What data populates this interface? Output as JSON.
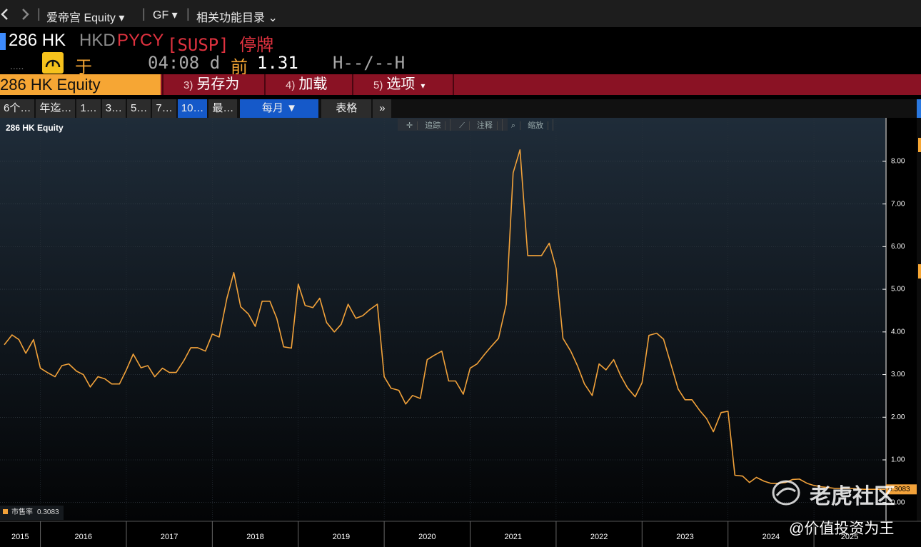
{
  "nav": {
    "security": "爱帝宫 Equity",
    "source": "GF",
    "related": "相关功能目录"
  },
  "header": {
    "ticker": "286 HK",
    "currency": "HKD",
    "code": "PYCY",
    "status": "[SUSP] 停牌",
    "time_prefix": "于",
    "time": "04:08 d",
    "prev_label": "前",
    "prev_value": "1.31",
    "range": "H--/--H"
  },
  "actions": {
    "security": "286 HK Equity",
    "buttons": [
      {
        "key": "3)",
        "label": "另存为"
      },
      {
        "key": "4)",
        "label": "加载"
      },
      {
        "key": "5)",
        "label": "选项"
      }
    ]
  },
  "tabs": [
    "6个…",
    "年迄…",
    "1…",
    "3…",
    "5…",
    "7…",
    "10…",
    "最…"
  ],
  "frequency": "每月 ▼",
  "table": "表格",
  "more": "»",
  "chart_tools": [
    "追踪",
    "注释",
    "缩放"
  ],
  "chart_data": {
    "type": "line",
    "title": "286 HK Equity",
    "x": [
      2015.58,
      2015.67,
      2015.75,
      2015.83,
      2015.92,
      2016.0,
      2016.08,
      2016.17,
      2016.25,
      2016.33,
      2016.42,
      2016.5,
      2016.58,
      2016.67,
      2016.75,
      2016.83,
      2016.92,
      2017.0,
      2017.08,
      2017.17,
      2017.25,
      2017.33,
      2017.42,
      2017.5,
      2017.58,
      2017.67,
      2017.75,
      2017.83,
      2017.92,
      2018.0,
      2018.08,
      2018.17,
      2018.25,
      2018.33,
      2018.42,
      2018.5,
      2018.58,
      2018.67,
      2018.75,
      2018.83,
      2018.92,
      2019.0,
      2019.08,
      2019.17,
      2019.25,
      2019.33,
      2019.42,
      2019.5,
      2019.58,
      2019.67,
      2019.75,
      2019.83,
      2019.92,
      2020.0,
      2020.08,
      2020.17,
      2020.25,
      2020.33,
      2020.42,
      2020.5,
      2020.58,
      2020.67,
      2020.75,
      2020.83,
      2020.92,
      2021.0,
      2021.08,
      2021.17,
      2021.25,
      2021.33,
      2021.42,
      2021.5,
      2021.58,
      2021.67,
      2021.75,
      2021.83,
      2021.92,
      2022.0,
      2022.08,
      2022.17,
      2022.25,
      2022.33,
      2022.42,
      2022.5,
      2022.58,
      2022.67,
      2022.75,
      2022.83,
      2022.92,
      2023.0,
      2023.08,
      2023.17,
      2023.25,
      2023.33,
      2023.42,
      2023.5,
      2023.58,
      2023.67,
      2023.75,
      2023.83,
      2023.92,
      2024.0,
      2024.08,
      2024.17,
      2024.25,
      2024.33,
      2024.42,
      2024.5,
      2024.58,
      2024.67,
      2024.75,
      2024.83,
      2024.92,
      2025.0,
      2025.08,
      2025.17,
      2025.25,
      2025.33,
      2025.42,
      2025.5,
      2025.58,
      2025.67,
      2025.75,
      2025.83
    ],
    "series": [
      {
        "name": "市售率",
        "color": "#f2a23a",
        "values": [
          3.7,
          3.93,
          3.82,
          3.5,
          3.82,
          3.15,
          3.05,
          2.95,
          3.21,
          3.25,
          3.08,
          3.0,
          2.71,
          2.95,
          2.9,
          2.78,
          2.78,
          3.11,
          3.48,
          3.16,
          3.21,
          2.95,
          3.15,
          3.05,
          3.05,
          3.33,
          3.63,
          3.63,
          3.55,
          3.95,
          3.88,
          4.79,
          5.39,
          4.59,
          4.42,
          4.13,
          4.72,
          4.72,
          4.32,
          3.65,
          3.62,
          5.12,
          4.62,
          4.57,
          4.79,
          4.22,
          4.0,
          4.18,
          4.65,
          4.32,
          4.38,
          4.52,
          4.65,
          2.95,
          2.68,
          2.63,
          2.31,
          2.51,
          2.44,
          3.35,
          3.45,
          3.55,
          2.85,
          2.85,
          2.54,
          3.15,
          3.25,
          3.48,
          3.67,
          3.85,
          4.65,
          7.73,
          8.27,
          5.79,
          5.79,
          5.79,
          6.08,
          5.49,
          3.85,
          3.55,
          3.2,
          2.78,
          2.51,
          3.25,
          3.11,
          3.35,
          2.98,
          2.69,
          2.48,
          2.81,
          3.92,
          3.97,
          3.83,
          3.28,
          2.66,
          2.41,
          2.41,
          2.16,
          1.97,
          1.66,
          2.11,
          2.14,
          0.64,
          0.62,
          0.47,
          0.59,
          0.5,
          0.45,
          0.45,
          0.47,
          0.54,
          0.55,
          0.45,
          0.4,
          0.37,
          0.35,
          0.33,
          0.33,
          0.33,
          0.32,
          0.31,
          0.31,
          0.31,
          0.3083
        ]
      }
    ],
    "xlim": [
      2015.53,
      2025.83
    ],
    "xticks": [
      2015,
      2016,
      2017,
      2018,
      2019,
      2020,
      2021,
      2022,
      2023,
      2024,
      2025
    ],
    "ylim": [
      -0.44,
      9.02
    ],
    "yticks": [
      {
        "value": 0,
        "label": "0.00"
      },
      {
        "value": 1,
        "label": "1.00"
      },
      {
        "value": 2,
        "label": "2.00"
      },
      {
        "value": 3,
        "label": "3.00"
      },
      {
        "value": 4,
        "label": "4.00"
      },
      {
        "value": 5,
        "label": "5.00"
      },
      {
        "value": 6,
        "label": "6.00"
      },
      {
        "value": 7,
        "label": "7.00"
      },
      {
        "value": 8,
        "label": "8.00"
      }
    ],
    "grid": true
  },
  "watermark": {
    "brand": "老虎社区",
    "author": "@价值投资为王"
  }
}
